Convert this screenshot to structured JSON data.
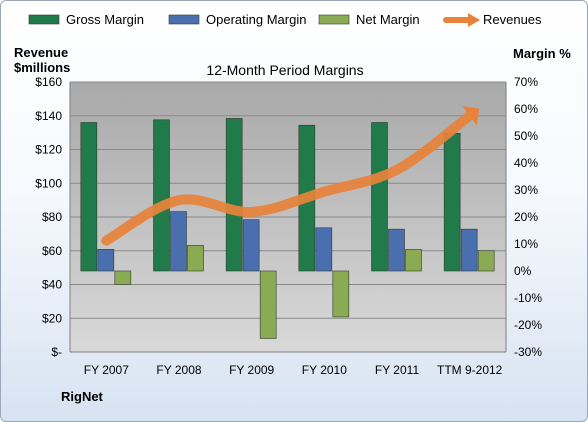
{
  "chart_data": {
    "type": "bar",
    "title": "12-Month Period Margins",
    "ylabel_left": [
      "Revenue",
      "$millions"
    ],
    "ylabel_right": "Margin %",
    "source_label": "RigNet",
    "categories": [
      "FY 2007",
      "FY 2008",
      "FY 2009",
      "FY 2010",
      "FY 2011",
      "TTM 9-2012"
    ],
    "left_axis": {
      "min": 0,
      "max": 160,
      "step": 20,
      "tick_labels": [
        "$-",
        "$20",
        "$40",
        "$60",
        "$80",
        "$100",
        "$120",
        "$140",
        "$160"
      ]
    },
    "right_axis": {
      "min": -30,
      "max": 70,
      "step": 10,
      "tick_labels": [
        "-30%",
        "-20%",
        "-10%",
        "0%",
        "10%",
        "20%",
        "30%",
        "40%",
        "50%",
        "60%",
        "70%"
      ]
    },
    "grid": true,
    "legend_position": "top",
    "series": [
      {
        "name": "Gross Margin",
        "type": "bar",
        "axis": "right",
        "color": "#217a4a",
        "values": [
          55,
          56,
          56.5,
          54,
          55,
          51
        ]
      },
      {
        "name": "Operating Margin",
        "type": "bar",
        "axis": "right",
        "color": "#4a6fae",
        "values": [
          8,
          22,
          19,
          16,
          15.5,
          15.5
        ]
      },
      {
        "name": "Net Margin",
        "type": "bar",
        "axis": "right",
        "color": "#8aab54",
        "values": [
          -5,
          9.5,
          -25,
          -17,
          8,
          7.5
        ]
      },
      {
        "name": "Revenues",
        "type": "line",
        "axis": "left",
        "color": "#e8823a",
        "values": [
          66,
          90,
          83,
          95,
          108,
          140
        ]
      }
    ]
  }
}
